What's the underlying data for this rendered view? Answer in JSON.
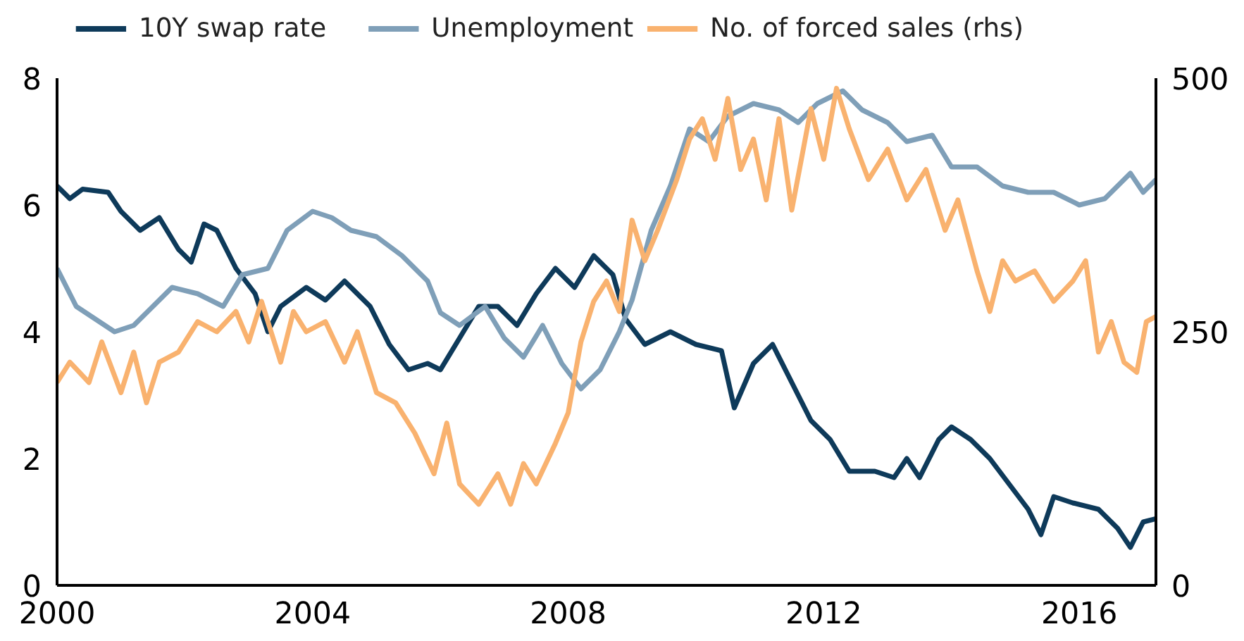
{
  "chart_data": {
    "type": "line",
    "xlim": [
      2000,
      2017.2
    ],
    "xticks": [
      2000,
      2004,
      2008,
      2012,
      2016
    ],
    "ylim": [
      0,
      8
    ],
    "yticks": [
      0,
      2,
      4,
      6,
      8
    ],
    "y2lim": [
      0,
      500
    ],
    "y2ticks": [
      0,
      250,
      500
    ],
    "grid": false,
    "legend": "top",
    "marker": "none",
    "line_style": "solid",
    "series": [
      {
        "name": "10Y swap rate",
        "color": "#0e3a5a",
        "x": [
          2000,
          2000.2,
          2000.4,
          2000.8,
          2001.0,
          2001.3,
          2001.6,
          2001.9,
          2002.1,
          2002.3,
          2002.5,
          2002.8,
          2003.1,
          2003.3,
          2003.5,
          2003.9,
          2004.2,
          2004.5,
          2004.9,
          2005.2,
          2005.5,
          2005.8,
          2006.0,
          2006.3,
          2006.6,
          2006.9,
          2007.2,
          2007.5,
          2007.8,
          2008.1,
          2008.4,
          2008.7,
          2008.9,
          2009.2,
          2009.6,
          2010.0,
          2010.4,
          2010.6,
          2010.9,
          2011.2,
          2011.5,
          2011.8,
          2012.1,
          2012.4,
          2012.8,
          2013.1,
          2013.3,
          2013.5,
          2013.8,
          2014.0,
          2014.3,
          2014.6,
          2014.9,
          2015.2,
          2015.4,
          2015.6,
          2015.9,
          2016.3,
          2016.6,
          2016.8,
          2017.0,
          2017.2
        ],
        "values": [
          6.3,
          6.1,
          6.25,
          6.2,
          5.9,
          5.6,
          5.8,
          5.3,
          5.1,
          5.7,
          5.6,
          5.0,
          4.6,
          4.0,
          4.4,
          4.7,
          4.5,
          4.8,
          4.4,
          3.8,
          3.4,
          3.5,
          3.4,
          3.9,
          4.4,
          4.4,
          4.1,
          4.6,
          5.0,
          4.7,
          5.2,
          4.9,
          4.2,
          3.8,
          4.0,
          3.8,
          3.7,
          2.8,
          3.5,
          3.8,
          3.2,
          2.6,
          2.3,
          1.8,
          1.8,
          1.7,
          2.0,
          1.7,
          2.3,
          2.5,
          2.3,
          2.0,
          1.6,
          1.2,
          0.8,
          1.4,
          1.3,
          1.2,
          0.9,
          0.6,
          1.0,
          1.05
        ]
      },
      {
        "name": "Unemployment",
        "color": "#7f9fb8",
        "x": [
          2000,
          2000.3,
          2000.6,
          2000.9,
          2001.2,
          2001.5,
          2001.8,
          2002.2,
          2002.6,
          2002.9,
          2003.3,
          2003.6,
          2004.0,
          2004.3,
          2004.6,
          2005.0,
          2005.4,
          2005.8,
          2006.0,
          2006.3,
          2006.7,
          2007.0,
          2007.3,
          2007.6,
          2007.9,
          2008.2,
          2008.5,
          2008.8,
          2009.0,
          2009.3,
          2009.6,
          2009.9,
          2010.2,
          2010.5,
          2010.9,
          2011.3,
          2011.6,
          2011.9,
          2012.3,
          2012.6,
          2013.0,
          2013.3,
          2013.7,
          2014.0,
          2014.4,
          2014.8,
          2015.2,
          2015.6,
          2016.0,
          2016.4,
          2016.8,
          2017.0,
          2017.2
        ],
        "values": [
          5.0,
          4.4,
          4.2,
          4.0,
          4.1,
          4.4,
          4.7,
          4.6,
          4.4,
          4.9,
          5.0,
          5.6,
          5.9,
          5.8,
          5.6,
          5.5,
          5.2,
          4.8,
          4.3,
          4.1,
          4.4,
          3.9,
          3.6,
          4.1,
          3.5,
          3.1,
          3.4,
          4.0,
          4.5,
          5.6,
          6.3,
          7.2,
          7.0,
          7.4,
          7.6,
          7.5,
          7.3,
          7.6,
          7.8,
          7.5,
          7.3,
          7.0,
          7.1,
          6.6,
          6.6,
          6.3,
          6.2,
          6.2,
          6.0,
          6.1,
          6.5,
          6.2,
          6.4
        ]
      },
      {
        "name": "No. of forced sales (rhs)",
        "color": "#f9b26f",
        "axis": "y2",
        "x": [
          2000,
          2000.2,
          2000.5,
          2000.7,
          2001.0,
          2001.2,
          2001.4,
          2001.6,
          2001.9,
          2002.2,
          2002.5,
          2002.8,
          2003.0,
          2003.2,
          2003.5,
          2003.7,
          2003.9,
          2004.2,
          2004.5,
          2004.7,
          2005.0,
          2005.3,
          2005.6,
          2005.9,
          2006.1,
          2006.3,
          2006.6,
          2006.9,
          2007.1,
          2007.3,
          2007.5,
          2007.8,
          2008.0,
          2008.2,
          2008.4,
          2008.6,
          2008.8,
          2009.0,
          2009.2,
          2009.4,
          2009.7,
          2009.9,
          2010.1,
          2010.3,
          2010.5,
          2010.7,
          2010.9,
          2011.1,
          2011.3,
          2011.5,
          2011.8,
          2012.0,
          2012.2,
          2012.4,
          2012.7,
          2013.0,
          2013.3,
          2013.6,
          2013.9,
          2014.1,
          2014.4,
          2014.6,
          2014.8,
          2015.0,
          2015.3,
          2015.6,
          2015.9,
          2016.1,
          2016.3,
          2016.5,
          2016.7,
          2016.9,
          2017.05,
          2017.2
        ],
        "values": [
          200,
          220,
          200,
          240,
          190,
          230,
          180,
          220,
          230,
          260,
          250,
          270,
          240,
          280,
          220,
          270,
          250,
          260,
          220,
          250,
          190,
          180,
          150,
          110,
          160,
          100,
          80,
          110,
          80,
          120,
          100,
          140,
          170,
          240,
          280,
          300,
          270,
          360,
          320,
          350,
          400,
          440,
          460,
          420,
          480,
          410,
          440,
          380,
          460,
          370,
          470,
          420,
          490,
          450,
          400,
          430,
          380,
          410,
          350,
          380,
          310,
          270,
          320,
          300,
          310,
          280,
          300,
          320,
          230,
          260,
          220,
          210,
          260,
          265
        ]
      }
    ]
  }
}
